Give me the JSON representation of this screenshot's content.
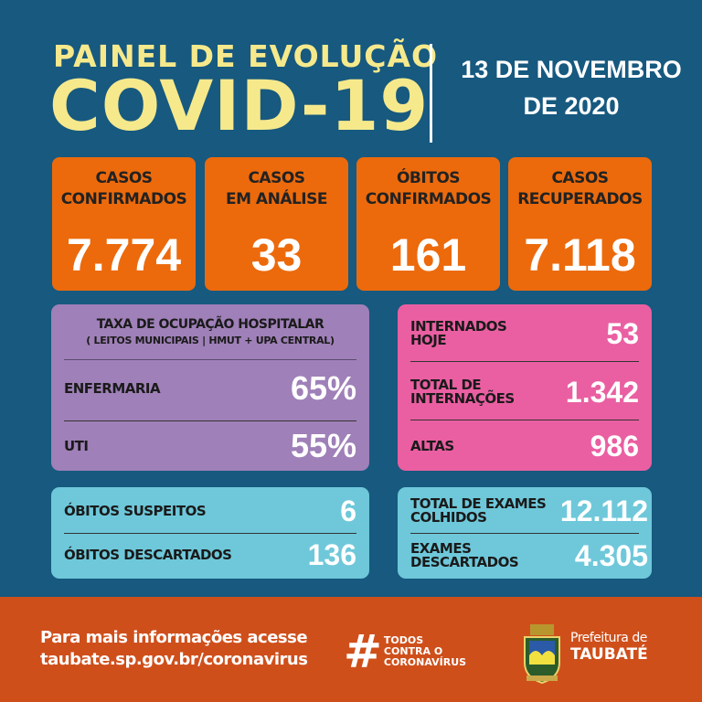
{
  "header": {
    "line1": "PAINEL DE EVOLUÇÃO",
    "line2": "COVID-19",
    "date_line1": "13 DE NOVEMBRO",
    "date_line2": "DE 2020"
  },
  "cards": [
    {
      "label1": "CASOS",
      "label2": "CONFIRMADOS",
      "value": "7.774"
    },
    {
      "label1": "CASOS",
      "label2": "EM ANÁLISE",
      "value": "33"
    },
    {
      "label1": "ÓBITOS",
      "label2": "CONFIRMADOS",
      "value": "161"
    },
    {
      "label1": "CASOS",
      "label2": "RECUPERADOS",
      "value": "7.118"
    }
  ],
  "occupancy": {
    "title": "TAXA DE OCUPAÇÃO HOSPITALAR",
    "subtitle": "( LEITOS MUNICIPAIS | HMUT + UPA CENTRAL)",
    "rows": [
      {
        "label": "ENFERMARIA",
        "value": "65%"
      },
      {
        "label": "UTI",
        "value": "55%"
      }
    ]
  },
  "hospital": {
    "rows": [
      {
        "label1": "INTERNADOS",
        "label2": "HOJE",
        "value": "53"
      },
      {
        "label1": "TOTAL DE",
        "label2": "INTERNAÇÕES",
        "value": "1.342"
      },
      {
        "label1": "ALTAS",
        "label2": "",
        "value": "986"
      }
    ]
  },
  "deaths": {
    "rows": [
      {
        "label": "ÓBITOS SUSPEITOS",
        "value": "6"
      },
      {
        "label": "ÓBITOS DESCARTADOS",
        "value": "136"
      }
    ]
  },
  "exams": {
    "rows": [
      {
        "label1": "TOTAL DE EXAMES",
        "label2": "COLHIDOS",
        "value": "12.112"
      },
      {
        "label1": "EXAMES",
        "label2": "DESCARTADOS",
        "value": "4.305"
      }
    ]
  },
  "footer": {
    "info1": "Para mais informações acesse",
    "info2": "taubate.sp.gov.br/coronavirus",
    "hashtag": "#",
    "tag1": "TODOS",
    "tag2": "CONTRA O",
    "tag3": "CORONAVÍRUS",
    "brand1": "Prefeitura de",
    "brand2": "TAUBATÉ"
  },
  "colors": {
    "background": "#17597f",
    "title": "#f6e98c",
    "card": "#ec6a0c",
    "occupancy": "#9f80b8",
    "hospital": "#ea5fa2",
    "cyan": "#6ec8da",
    "footer": "#cf4f1b"
  }
}
